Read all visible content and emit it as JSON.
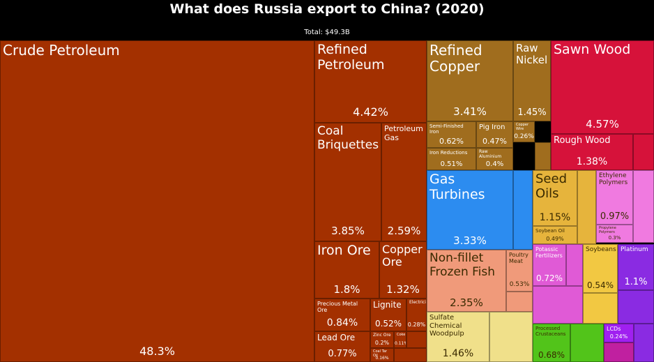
{
  "title": "What does Russia export to China? (2020)",
  "subtitle": "Total: $49.3B",
  "chart_data": {
    "type": "treemap",
    "title": "What does Russia export to China? (2020)",
    "total": "Total: $49.3B",
    "items": [
      {
        "name": "Crude Petroleum",
        "value": 48.3,
        "color": "#a33000"
      },
      {
        "name": "Refined Petroleum",
        "value": 4.42,
        "color": "#a33000"
      },
      {
        "name": "Coal Briquettes",
        "value": 3.85,
        "color": "#a33000"
      },
      {
        "name": "Petroleum Gas",
        "value": 2.59,
        "color": "#a33000"
      },
      {
        "name": "Iron Ore",
        "value": 1.8,
        "color": "#a33000"
      },
      {
        "name": "Copper Ore",
        "value": 1.32,
        "color": "#a33000"
      },
      {
        "name": "Precious Metal Ore",
        "value": 0.84,
        "color": "#a33000"
      },
      {
        "name": "Lignite",
        "value": 0.52,
        "color": "#a33000"
      },
      {
        "name": "Electricity",
        "value": 0.28,
        "color": "#a33000"
      },
      {
        "name": "Lead Ore",
        "value": 0.77,
        "color": "#a33000"
      },
      {
        "name": "Zinc Ore",
        "value": 0.2,
        "color": "#a33000"
      },
      {
        "name": "Coke",
        "value": 0.11,
        "color": "#a33000"
      },
      {
        "name": "Coal Tar Oil",
        "value": 0.16,
        "color": "#a33000"
      },
      {
        "name": "Refined Copper",
        "value": 3.41,
        "color": "#a06d1e"
      },
      {
        "name": "Raw Nickel",
        "value": 1.45,
        "color": "#a06d1e"
      },
      {
        "name": "Semi-Finished Iron",
        "value": 0.62,
        "color": "#a06d1e"
      },
      {
        "name": "Pig Iron",
        "value": 0.47,
        "color": "#a06d1e"
      },
      {
        "name": "Copper Wire",
        "value": 0.26,
        "color": "#a06d1e"
      },
      {
        "name": "Iron Reductions",
        "value": 0.51,
        "color": "#a06d1e"
      },
      {
        "name": "Raw Aluminium",
        "value": 0.4,
        "color": "#a06d1e"
      },
      {
        "name": "Sawn Wood",
        "value": 4.57,
        "color": "#d6123a"
      },
      {
        "name": "Rough Wood",
        "value": 1.38,
        "color": "#d6123a"
      },
      {
        "name": "Gas Turbines",
        "value": 3.33,
        "color": "#2c8cf0"
      },
      {
        "name": "Non-fillet Frozen Fish",
        "value": 2.35,
        "color": "#f09a7a"
      },
      {
        "name": "Poultry Meat",
        "value": 0.53,
        "color": "#f09a7a"
      },
      {
        "name": "Seed Oils",
        "value": 1.15,
        "color": "#e6b43c"
      },
      {
        "name": "Soybean Oil",
        "value": 0.49,
        "color": "#e6b43c"
      },
      {
        "name": "Ethylene Polymers",
        "value": 0.97,
        "color": "#f07ae0"
      },
      {
        "name": "Propylene Polymers",
        "value": 0.3,
        "color": "#f07ae0"
      },
      {
        "name": "Potassic Fertilizers",
        "value": 0.72,
        "color": "#e05ad6"
      },
      {
        "name": "Soybeans",
        "value": 0.54,
        "color": "#f2c842"
      },
      {
        "name": "Platinum",
        "value": 1.1,
        "color": "#8a2be2"
      },
      {
        "name": "Sulfate Chemical Woodpulp",
        "value": 1.46,
        "color": "#f0e08a"
      },
      {
        "name": "Processed Crustaceans",
        "value": 0.68,
        "color": "#52c41a"
      },
      {
        "name": "LCDs",
        "value": 0.24,
        "color": "#a020f0"
      }
    ]
  }
}
